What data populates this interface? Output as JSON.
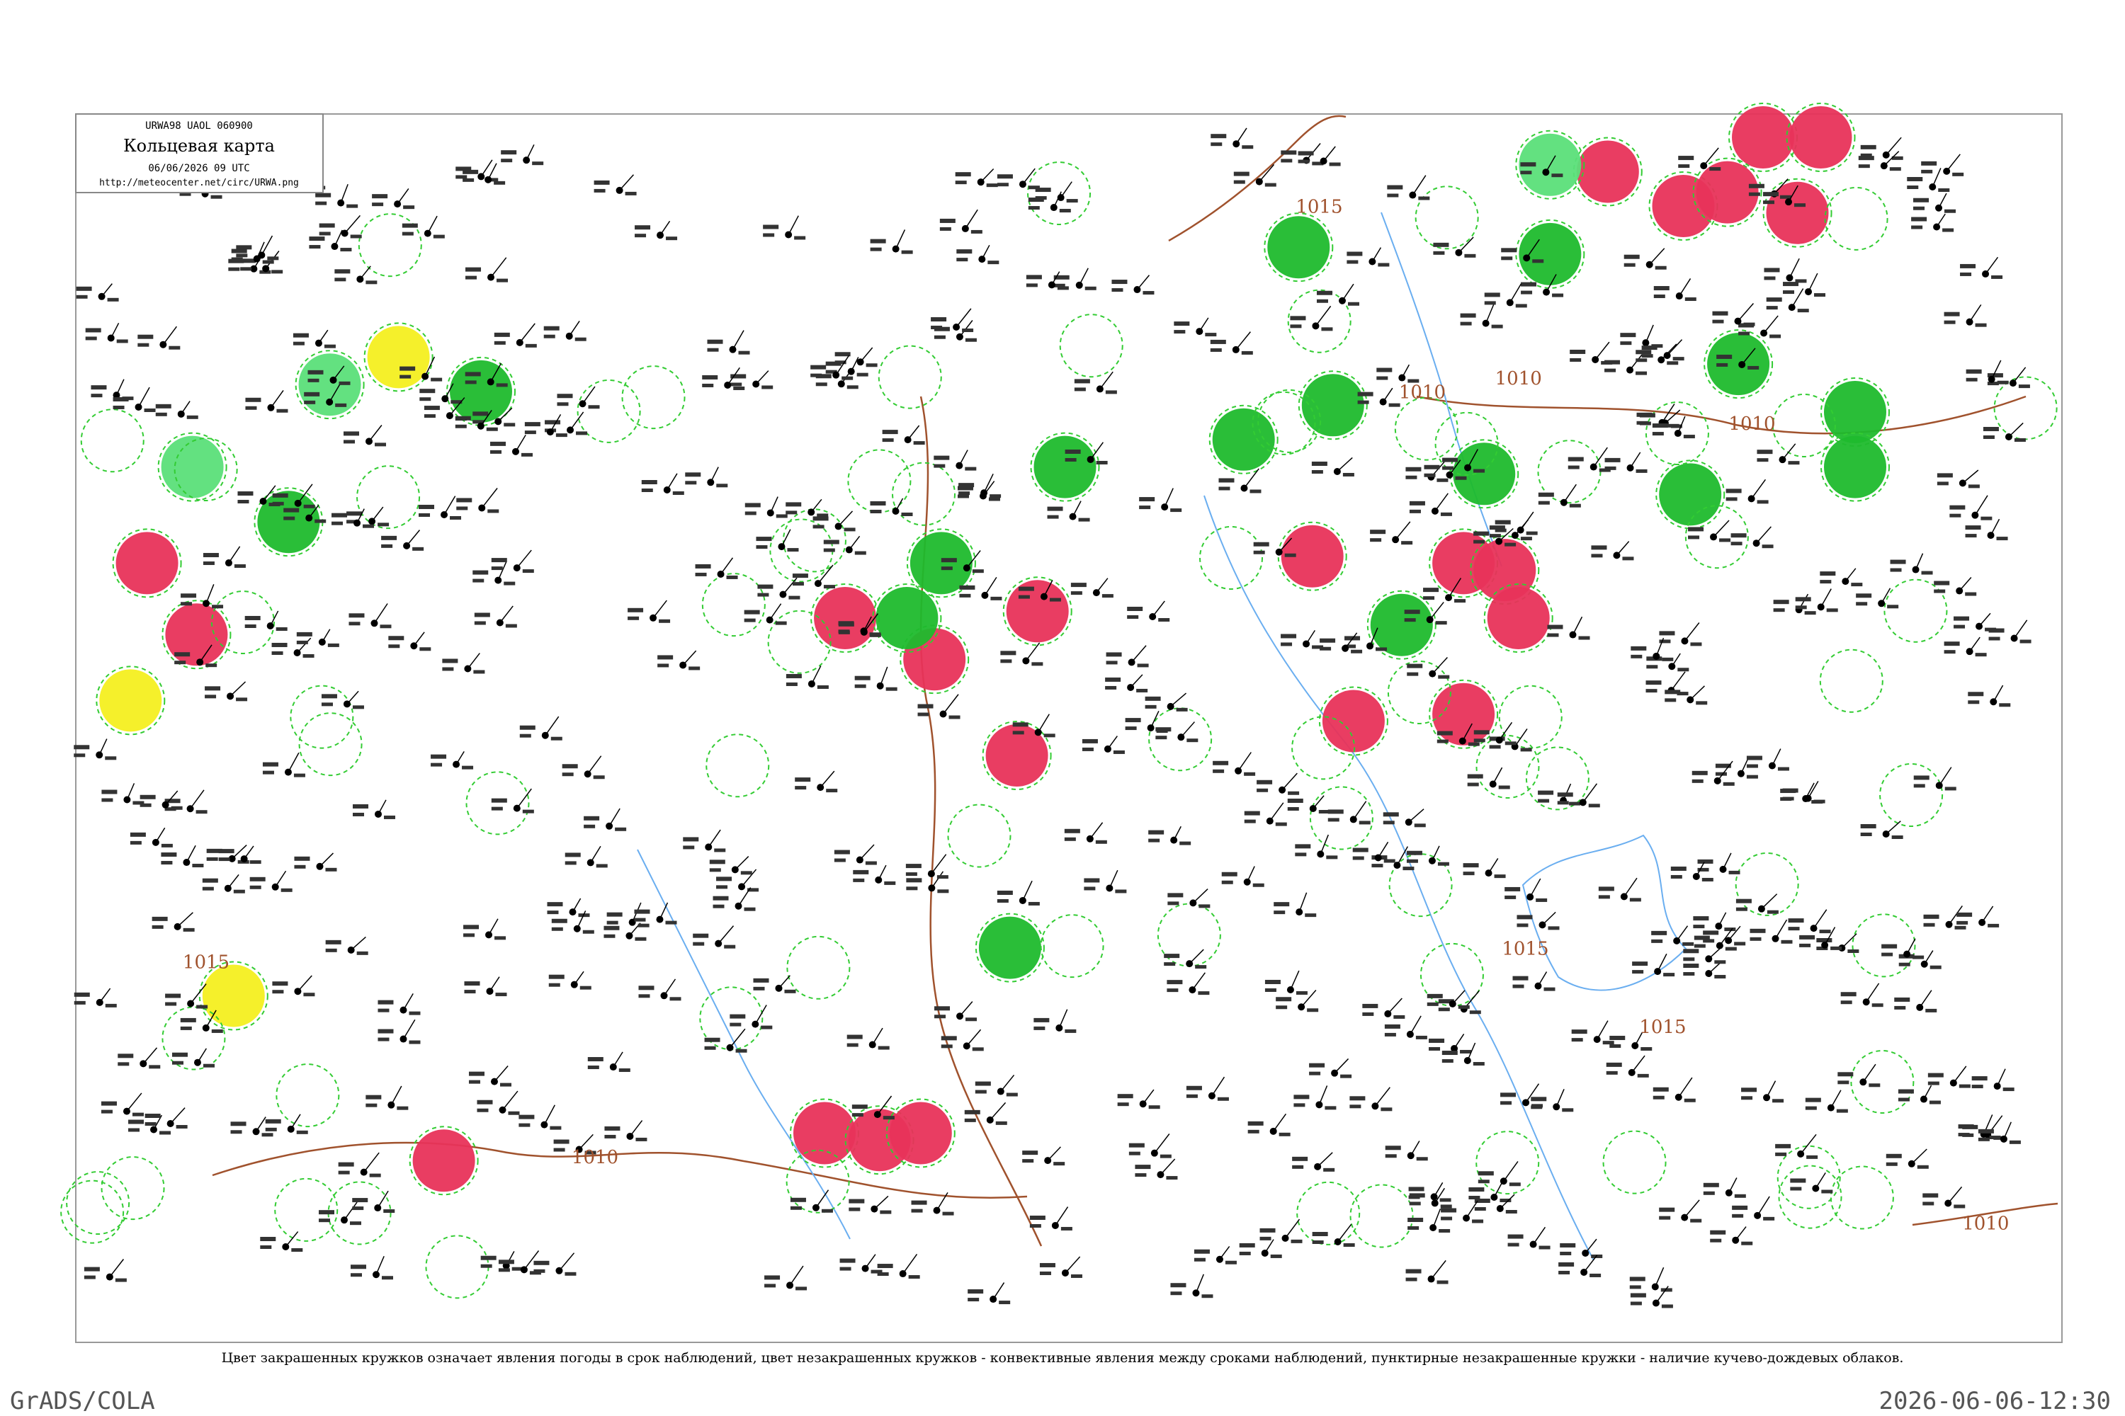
{
  "header": {
    "code": "URWA98  UAOL  060900",
    "title": "Кольцевая карта",
    "datetime": "06/06/2026 09 UTC",
    "url": "http://meteocenter.net/circ/URWA.png"
  },
  "isobar_labels": [
    "1015",
    "1010",
    "1015",
    "1010",
    "1015",
    "1015",
    "1010",
    "1010",
    "1010"
  ],
  "caption": "Цвет закрашенных кружков означает явления погоды в срок наблюдений, цвет незакрашенных кружков - конвективные явления между сроками наблюдений, пунктирные незакрашенные кружки - наличие кучево-дождевых облаков.",
  "footer": {
    "software": "GrADS/COLA",
    "timestamp": "2026-06-06-12:30"
  }
}
